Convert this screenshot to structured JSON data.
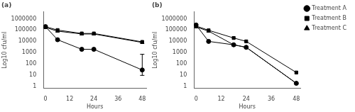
{
  "chart_data": [
    {
      "type": "line",
      "title": "(a)",
      "x": [
        0,
        6,
        18,
        24,
        48
      ],
      "x_label": "Hours",
      "y_label": "Log10 cfu/ml",
      "xlim": [
        -1,
        50
      ],
      "xticks": [
        0,
        12,
        24,
        36,
        48
      ],
      "ylim": [
        0.7,
        4000000
      ],
      "yticks": [
        1,
        10,
        100,
        1000,
        10000,
        100000,
        1000000
      ],
      "log": "y",
      "grid": false,
      "series": [
        {
          "name": "Treatment A",
          "color": "black",
          "marker": "circle",
          "line_style": "solid",
          "values": [
            200000,
            14000,
            2000,
            2000,
            30
          ],
          "error_low": [
            null,
            null,
            null,
            null,
            20
          ],
          "error_high": [
            null,
            null,
            null,
            null,
            700
          ]
        },
        {
          "name": "Treatment B",
          "color": "black",
          "marker": "square",
          "line_style": "solid",
          "values": [
            200000,
            100000,
            50000,
            50000,
            9000
          ]
        },
        {
          "name": "Treatment C",
          "color": "black",
          "marker": "triangle",
          "line_style": "solid",
          "values": [
            170000,
            80000,
            45000,
            45000,
            8000
          ]
        }
      ]
    },
    {
      "type": "line",
      "title": "(b)",
      "x": [
        0,
        6,
        18,
        24,
        48
      ],
      "x_label": "Hours",
      "y_label": "Log10 cfu/ml",
      "xlim": [
        -1,
        50
      ],
      "xticks": [
        0,
        12,
        24,
        36,
        48
      ],
      "ylim": [
        0.7,
        4000000
      ],
      "yticks": [
        1,
        10,
        100,
        1000,
        10000,
        100000,
        1000000
      ],
      "log": "y",
      "grid": false,
      "legend": "right",
      "series": [
        {
          "name": "Treatment A",
          "color": "black",
          "marker": "circle",
          "line_style": "solid",
          "values": [
            280000,
            10000,
            5000,
            3000,
            2
          ]
        },
        {
          "name": "Treatment B",
          "color": "black",
          "marker": "square",
          "line_style": "solid",
          "values": [
            230000,
            95000,
            20000,
            10000,
            18
          ]
        },
        {
          "name": "Treatment C",
          "color": "black",
          "marker": "triangle",
          "line_style": "solid",
          "values": [
            190000,
            80000,
            5000,
            3000,
            2
          ]
        }
      ]
    }
  ]
}
